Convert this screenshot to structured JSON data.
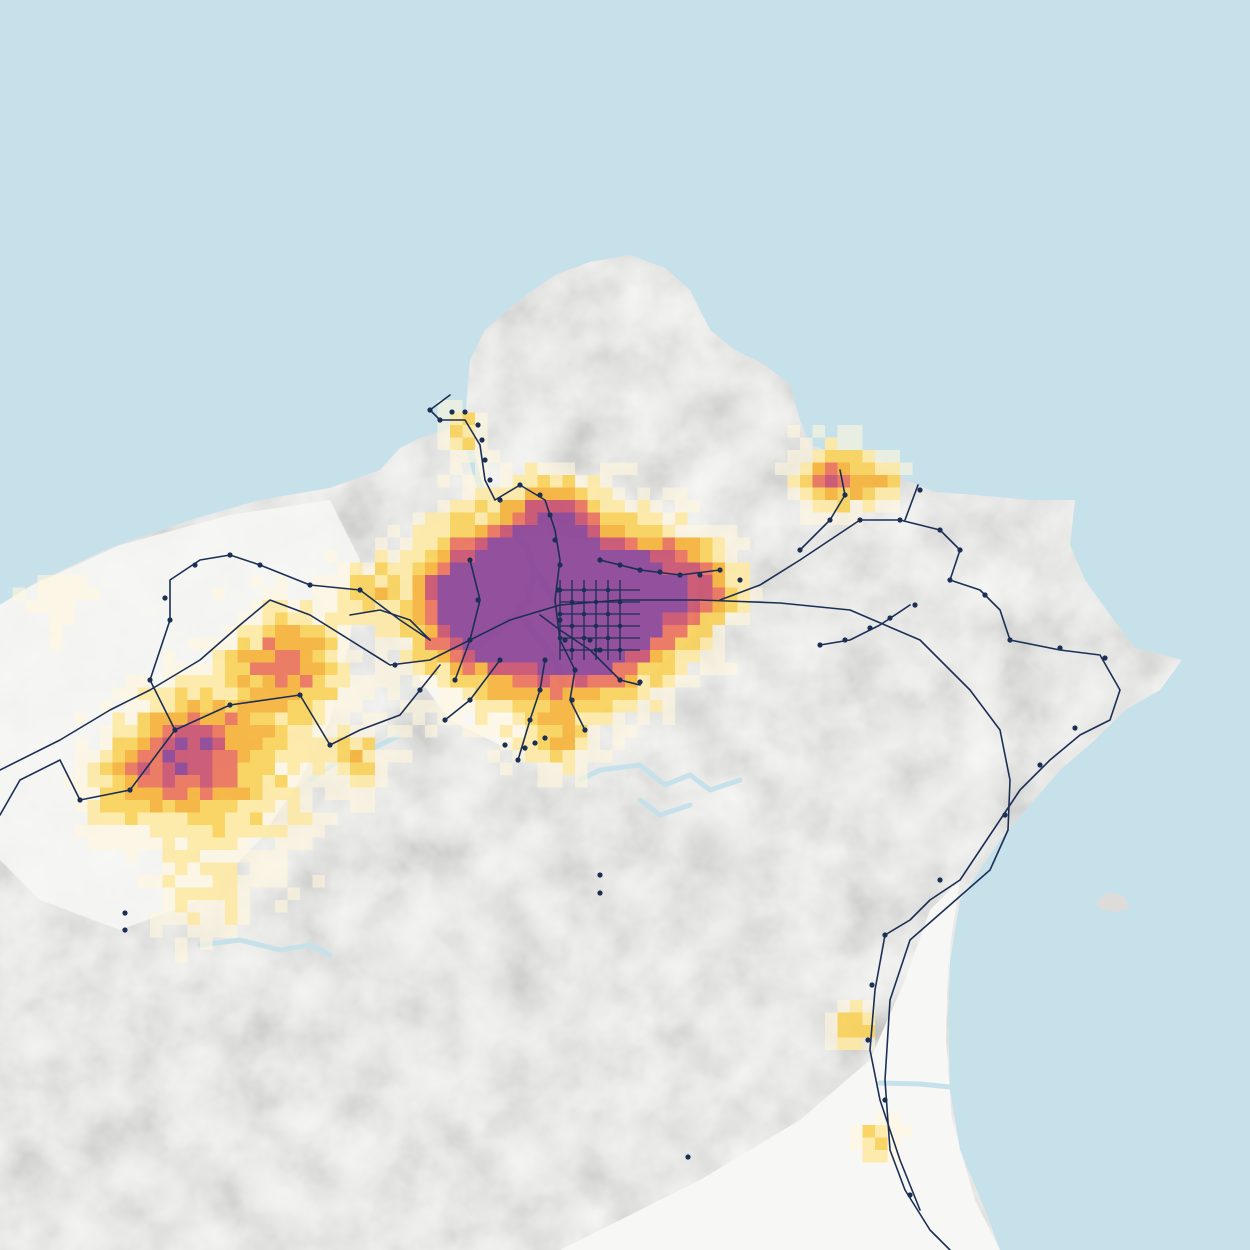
{
  "map": {
    "colors": {
      "water": "#c7e1ea",
      "land": "#f7f7f5",
      "land_shadow": "#dedcda",
      "terrain_dark": "#cfcdca",
      "river": "#c7e1ea",
      "transit_line": "#1b2f55",
      "station": "#1b2f55"
    },
    "density_scale": {
      "colors": [
        "#fff7dc",
        "#fde9a6",
        "#f9d15a",
        "#f4b23a",
        "#e9715a",
        "#c8506f",
        "#8a4295"
      ],
      "levels": [
        1,
        2,
        3,
        4,
        5,
        6,
        7
      ]
    },
    "layers": [
      "water",
      "land",
      "terrain",
      "rivers",
      "population-density",
      "transit-lines",
      "transit-stations"
    ]
  }
}
